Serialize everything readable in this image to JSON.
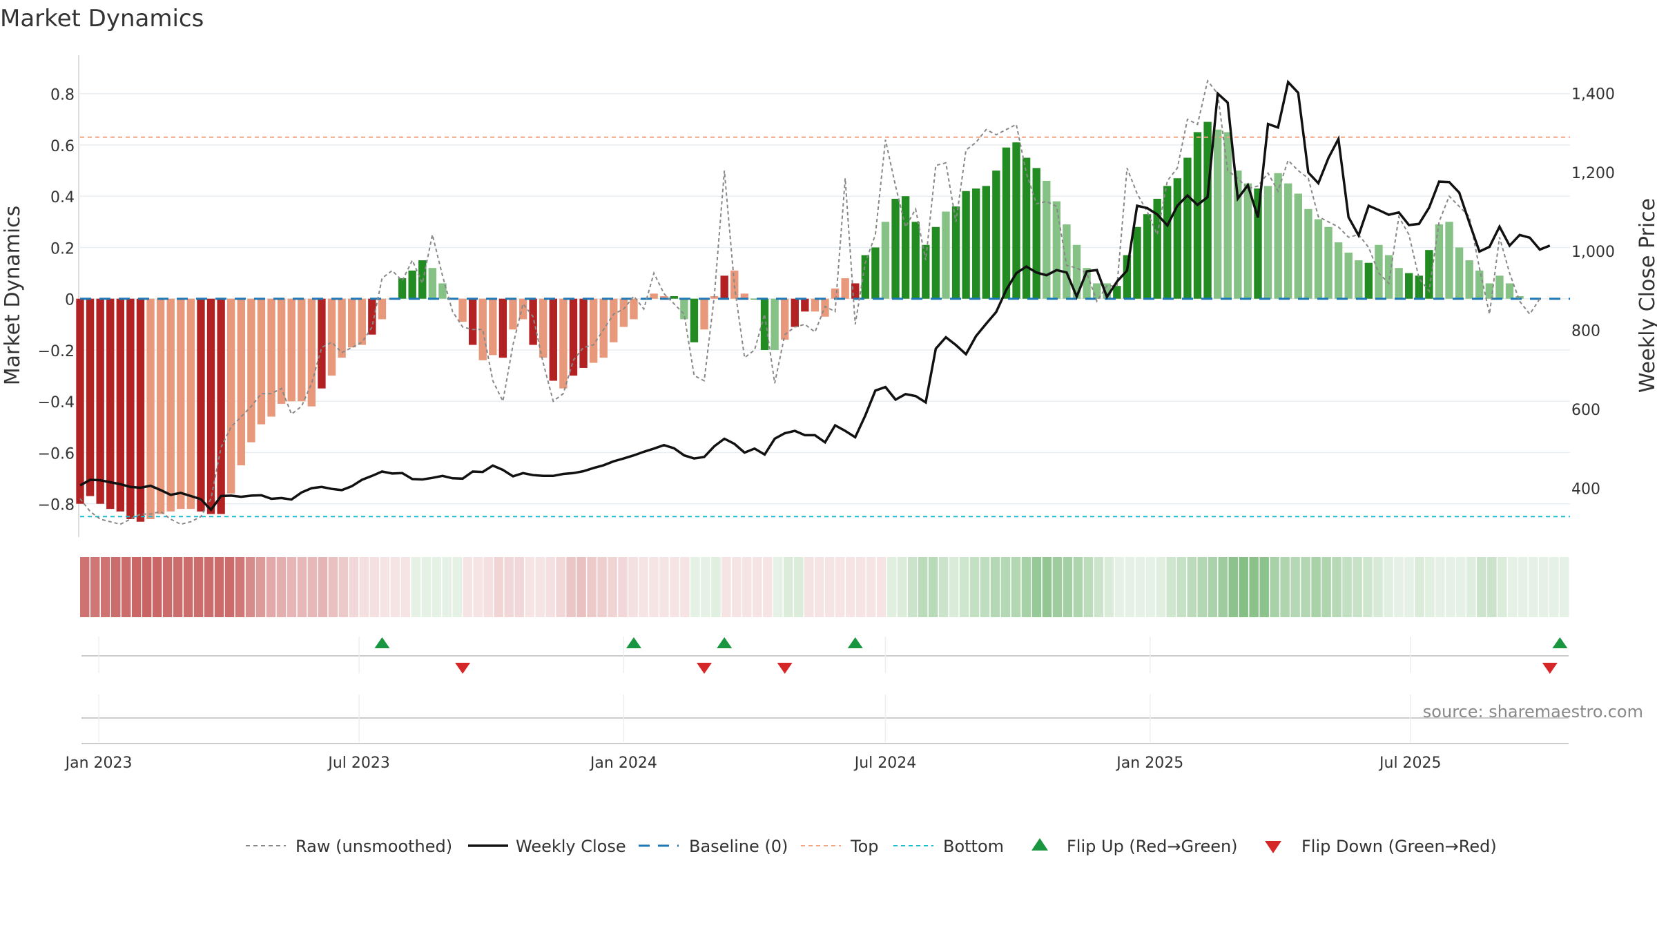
{
  "title": "Market Dynamics",
  "source_text": "source: sharemaestro.com",
  "colors": {
    "strong_red": "#b22222",
    "light_red": "#e8997b",
    "strong_green": "#228b22",
    "light_green": "#86c286",
    "raw": "#888888",
    "close": "#111111",
    "baseline": "#1f77b4",
    "top": "#f4a582",
    "bottom": "#17becf",
    "flip_up": "#1a9641",
    "flip_down": "#d62728",
    "grid": "#e8eef2"
  },
  "chart_data": {
    "type": "bar",
    "title": "Market Dynamics",
    "ylabel": "Market Dynamics",
    "y2label": "Weekly Close Price",
    "ylim": [
      -0.93,
      0.95
    ],
    "y2lim": [
      275,
      1495
    ],
    "yticks": [
      {
        "v": 0.8,
        "label": "0.8"
      },
      {
        "v": 0.6,
        "label": "0.6"
      },
      {
        "v": 0.4,
        "label": "0.4"
      },
      {
        "v": 0.2,
        "label": "0.2"
      },
      {
        "v": 0.0,
        "label": "0"
      },
      {
        "v": -0.2,
        "label": "−0.2"
      },
      {
        "v": -0.4,
        "label": "−0.4"
      },
      {
        "v": -0.6,
        "label": "−0.6"
      },
      {
        "v": -0.8,
        "label": "−0.8"
      }
    ],
    "y2ticks": [
      {
        "v": 1400,
        "label": "1,400"
      },
      {
        "v": 1200,
        "label": "1,200"
      },
      {
        "v": 1000,
        "label": "1,000"
      },
      {
        "v": 800,
        "label": "800"
      },
      {
        "v": 600,
        "label": "600"
      },
      {
        "v": 400,
        "label": "400"
      }
    ],
    "x_start": "2022-12-19",
    "x_end": "2025-10-20",
    "xticks": [
      {
        "date": "2023-01-01",
        "label": "Jan 2023"
      },
      {
        "date": "2023-07-01",
        "label": "Jul 2023"
      },
      {
        "date": "2024-01-01",
        "label": "Jan 2024"
      },
      {
        "date": "2024-07-01",
        "label": "Jul 2024"
      },
      {
        "date": "2025-01-01",
        "label": "Jan 2025"
      },
      {
        "date": "2025-07-01",
        "label": "Jul 2025"
      }
    ],
    "first_week": "2022-12-19",
    "top_level": 0.63,
    "bottom_level": -0.85,
    "baseline_level": 0,
    "bar_colors": "s = strong red, l = light red, G = strong green, g = light green",
    "bars": [
      -0.8,
      -0.77,
      -0.8,
      -0.82,
      -0.83,
      -0.86,
      -0.87,
      -0.86,
      -0.84,
      -0.83,
      -0.82,
      -0.82,
      -0.83,
      -0.84,
      -0.84,
      -0.76,
      -0.65,
      -0.56,
      -0.49,
      -0.46,
      -0.41,
      -0.4,
      -0.4,
      -0.42,
      -0.35,
      -0.3,
      -0.23,
      -0.19,
      -0.18,
      -0.14,
      -0.08,
      0.0,
      0.08,
      0.11,
      0.15,
      0.12,
      0.06,
      0.0,
      -0.09,
      -0.18,
      -0.24,
      -0.22,
      -0.23,
      -0.12,
      -0.08,
      -0.18,
      -0.23,
      -0.32,
      -0.35,
      -0.3,
      -0.27,
      -0.25,
      -0.23,
      -0.17,
      -0.11,
      -0.08,
      0.0,
      0.02,
      0.01,
      0.01,
      -0.08,
      -0.17,
      -0.12,
      0.01,
      0.09,
      0.11,
      0.02,
      0.0,
      -0.2,
      -0.2,
      -0.16,
      -0.11,
      -0.05,
      -0.05,
      -0.07,
      0.04,
      0.08,
      0.06,
      0.17,
      0.2,
      0.3,
      0.39,
      0.4,
      0.3,
      0.21,
      0.28,
      0.34,
      0.36,
      0.42,
      0.43,
      0.44,
      0.5,
      0.59,
      0.61,
      0.55,
      0.51,
      0.46,
      0.38,
      0.29,
      0.21,
      0.12,
      0.06,
      0.06,
      0.05,
      0.17,
      0.28,
      0.33,
      0.39,
      0.44,
      0.47,
      0.55,
      0.65,
      0.69,
      0.66,
      0.65,
      0.5,
      0.45,
      0.43,
      0.44,
      0.49,
      0.45,
      0.41,
      0.35,
      0.31,
      0.28,
      0.22,
      0.18,
      0.15,
      0.14,
      0.21,
      0.17,
      0.12,
      0.1,
      0.09,
      0.19,
      0.29,
      0.3,
      0.2,
      0.15,
      0.11,
      0.06,
      0.09,
      0.06,
      0.01
    ],
    "bar_types": "ssssssslllllssslllllllllsllllsllGGGggllsllsllslslssllllllllGgGllsllGGglssllllsGGgGGGGGgGGGGGGGGGgggggggGGGGGGGGGGggggGggggggggggGgggGGGgggggg",
    "raw": [
      -0.78,
      -0.83,
      -0.86,
      -0.87,
      -0.88,
      -0.86,
      -0.84,
      -0.84,
      -0.83,
      -0.86,
      -0.88,
      -0.87,
      -0.85,
      -0.78,
      -0.58,
      -0.5,
      -0.46,
      -0.42,
      -0.37,
      -0.37,
      -0.35,
      -0.45,
      -0.42,
      -0.33,
      -0.19,
      -0.17,
      -0.21,
      -0.19,
      -0.17,
      -0.11,
      0.08,
      0.11,
      0.07,
      0.15,
      0.06,
      0.25,
      0.09,
      -0.05,
      -0.11,
      -0.12,
      -0.12,
      -0.32,
      -0.4,
      -0.18,
      -0.02,
      -0.07,
      -0.25,
      -0.4,
      -0.37,
      -0.24,
      -0.19,
      -0.18,
      -0.12,
      -0.06,
      -0.04,
      0.01,
      -0.04,
      0.1,
      0.02,
      -0.02,
      -0.06,
      -0.3,
      -0.32,
      0.01,
      0.5,
      0.05,
      -0.23,
      -0.2,
      -0.06,
      -0.33,
      -0.14,
      -0.11,
      -0.1,
      -0.13,
      -0.03,
      -0.05,
      0.47,
      -0.1,
      0.14,
      0.25,
      0.62,
      0.44,
      0.28,
      0.35,
      0.15,
      0.52,
      0.53,
      0.3,
      0.58,
      0.61,
      0.66,
      0.64,
      0.66,
      0.68,
      0.49,
      0.37,
      0.38,
      0.36,
      0.13,
      0.12,
      0.1,
      -0.01,
      0.05,
      0.05,
      0.51,
      0.41,
      0.34,
      0.25,
      0.46,
      0.51,
      0.7,
      0.68,
      0.85,
      0.8,
      0.5,
      0.47,
      0.43,
      0.44,
      0.49,
      0.42,
      0.54,
      0.5,
      0.47,
      0.32,
      0.3,
      0.28,
      0.24,
      0.25,
      0.2,
      0.1,
      0.06,
      0.32,
      0.25,
      0.08,
      0.03,
      0.3,
      0.4,
      0.36,
      0.32,
      0.12,
      -0.06,
      0.24,
      0.1,
      -0.01,
      -0.06,
      0.0
    ],
    "close": [
      406,
      420,
      419,
      414,
      409,
      402,
      400,
      405,
      394,
      382,
      387,
      379,
      371,
      344,
      379,
      380,
      377,
      380,
      381,
      372,
      374,
      370,
      388,
      399,
      402,
      397,
      394,
      404,
      420,
      430,
      441,
      436,
      437,
      422,
      421,
      425,
      430,
      424,
      423,
      441,
      440,
      456,
      445,
      429,
      437,
      432,
      430,
      430,
      435,
      437,
      442,
      450,
      457,
      467,
      474,
      482,
      491,
      499,
      508,
      500,
      482,
      474,
      478,
      505,
      524,
      511,
      489,
      499,
      484,
      524,
      538,
      544,
      533,
      533,
      515,
      558,
      544,
      528,
      583,
      646,
      655,
      623,
      637,
      632,
      616,
      752,
      781,
      761,
      738,
      784,
      815,
      845,
      901,
      943,
      960,
      945,
      938,
      951,
      945,
      884,
      948,
      951,
      883,
      922,
      950,
      1114,
      1108,
      1092,
      1064,
      1114,
      1140,
      1116,
      1136,
      1398,
      1375,
      1132,
      1166,
      1084,
      1321,
      1312,
      1427,
      1400,
      1198,
      1171,
      1235,
      1283,
      1085,
      1039,
      1114,
      1103,
      1091,
      1097,
      1065,
      1068,
      1109,
      1175,
      1174,
      1147,
      1071,
      998,
      1010,
      1061,
      1013,
      1040,
      1033,
      1003,
      1013
    ],
    "heat": [
      0.64,
      0.62,
      0.64,
      0.66,
      0.66,
      0.69,
      0.7,
      0.69,
      0.67,
      0.66,
      0.66,
      0.66,
      0.66,
      0.67,
      0.67,
      0.61,
      0.52,
      0.45,
      0.39,
      0.37,
      0.33,
      0.32,
      0.32,
      0.34,
      0.28,
      0.24,
      0.18,
      0.15,
      0.14,
      0.11,
      0.06,
      -0.05,
      0.06,
      0.09,
      0.12,
      0.1,
      0.05,
      0.07,
      0.07,
      0.14,
      0.19,
      0.18,
      0.18,
      0.1,
      0.06,
      0.14,
      0.18,
      0.26,
      0.28,
      0.24,
      0.22,
      0.2,
      0.18,
      0.14,
      0.09,
      0.06,
      -0.05,
      0.02,
      0.01,
      0.01,
      0.06,
      0.14,
      0.1,
      0.01,
      0.07,
      0.09,
      0.02,
      0.05,
      0.16,
      0.16,
      0.13,
      0.09,
      0.04,
      0.04,
      0.06,
      0.03,
      0.06,
      0.05,
      0.14,
      0.16,
      0.24,
      0.31,
      0.32,
      0.24,
      0.17,
      0.22,
      0.27,
      0.29,
      0.34,
      0.34,
      0.35,
      0.4,
      0.47,
      0.49,
      0.44,
      0.41,
      0.37,
      0.3,
      0.23,
      0.17,
      0.1,
      0.05,
      0.05,
      0.04,
      0.14,
      0.22,
      0.26,
      0.31,
      0.35,
      0.38,
      0.44,
      0.52,
      0.55,
      0.53,
      0.52,
      0.4,
      0.36,
      0.34,
      0.35,
      0.39,
      0.36,
      0.33,
      0.28,
      0.25,
      0.22,
      0.18,
      0.14,
      0.12,
      0.11,
      0.17,
      0.14,
      0.1,
      0.08,
      0.07,
      0.15,
      0.23,
      0.24,
      0.16,
      0.12,
      0.09,
      0.05,
      0.07,
      0.05,
      0.12
    ],
    "flips_up": [
      "2023-07-17",
      "2024-01-08",
      "2024-03-11",
      "2024-06-10",
      "2025-10-13"
    ],
    "flips_down": [
      "2023-09-11",
      "2024-02-26",
      "2024-04-22",
      "2025-10-06"
    ]
  },
  "legend": {
    "raw": "Raw (unsmoothed)",
    "close": "Weekly Close",
    "baseline": "Baseline (0)",
    "top": "Top",
    "bottom": "Bottom",
    "flip_up": "Flip Up (Red→Green)",
    "flip_down": "Flip Down (Green→Red)"
  }
}
